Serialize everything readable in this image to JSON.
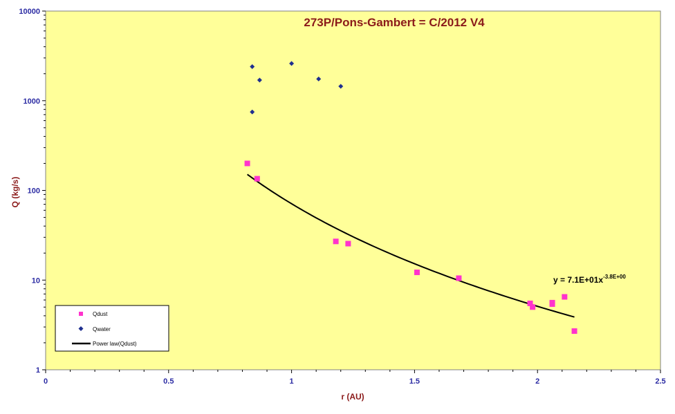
{
  "chart_data": {
    "type": "scatter",
    "title": "273P/Pons-Gambert  = C/2012 V4",
    "xlabel": "r (AU)",
    "ylabel": "Q (kg/s)",
    "xlim": [
      0,
      2.5
    ],
    "ylim": [
      1,
      10000
    ],
    "y_scale": "log",
    "x_ticks": [
      0,
      0.5,
      1,
      1.5,
      2,
      2.5
    ],
    "x_tick_labels": [
      "0",
      "0.5",
      "1",
      "1.5",
      "2",
      "2.5"
    ],
    "y_ticks": [
      1,
      10,
      100,
      1000,
      10000
    ],
    "y_tick_labels": [
      "1",
      "10",
      "100",
      "1000",
      "10000"
    ],
    "grid": false,
    "legend_position": "bottom-left",
    "background_color": "#ffff99",
    "series": [
      {
        "name": "Qdust",
        "marker": "square",
        "color": "#ff33cc",
        "x": [
          0.82,
          0.86,
          1.18,
          1.23,
          1.51,
          1.68,
          1.97,
          1.98,
          2.06,
          2.06,
          2.11,
          2.15
        ],
        "y": [
          200,
          135,
          27,
          25.5,
          12.2,
          10.5,
          5.5,
          5.0,
          5.6,
          5.4,
          6.5,
          2.7
        ]
      },
      {
        "name": "Qwater",
        "marker": "diamond",
        "color": "#1f2f8f",
        "x": [
          0.84,
          0.84,
          0.87,
          1.0,
          1.11,
          1.2
        ],
        "y": [
          2400,
          750,
          1700,
          2600,
          1750,
          1450
        ]
      },
      {
        "name": "Power law(Qdust)",
        "type": "line",
        "color": "#000000",
        "fit": {
          "a": 71,
          "b": -3.8
        },
        "x_range": [
          0.82,
          2.15
        ]
      }
    ],
    "annotation": {
      "base": "y = 7.1E+01x",
      "exponent": "-3.8E+00"
    }
  }
}
